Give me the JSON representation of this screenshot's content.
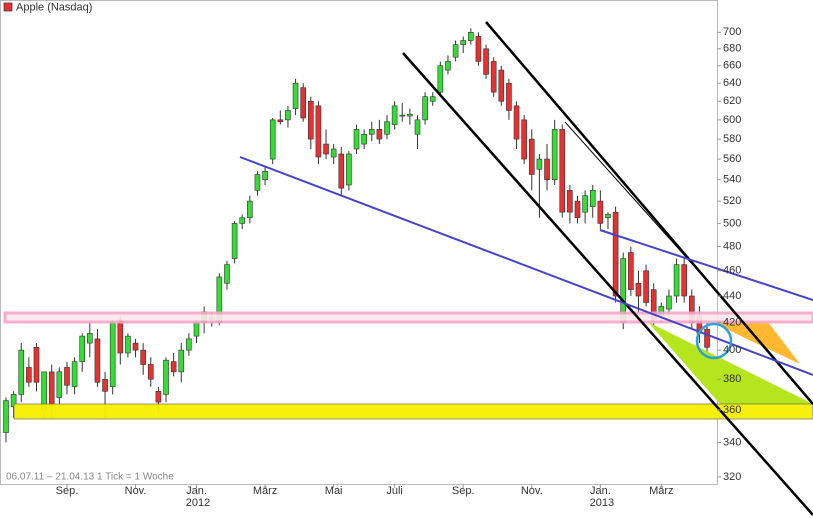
{
  "chart_data": {
    "type": "candlestick",
    "title": "Apple (Nasdaq)",
    "footer": "06.07.11 – 21.04.13   1 Tick = 1 Woche",
    "categories": [
      null,
      null,
      null,
      null,
      null,
      null,
      null,
      null,
      "Sep.",
      null,
      null,
      null,
      null,
      null,
      null,
      null,
      null,
      "Nov.",
      null,
      null,
      null,
      null,
      null,
      null,
      null,
      "Jan. 2012",
      null,
      null,
      null,
      null,
      null,
      null,
      null,
      null,
      "März",
      null,
      null,
      null,
      null,
      null,
      null,
      null,
      null,
      "Mai",
      null,
      null,
      null,
      null,
      null,
      null,
      null,
      "Juli",
      null,
      null,
      null,
      null,
      null,
      null,
      null,
      null,
      "Sep.",
      null,
      null,
      null,
      null,
      null,
      null,
      null,
      null,
      "Nov.",
      null,
      null,
      null,
      null,
      null,
      null,
      null,
      null,
      "Jan. 2013",
      null,
      null,
      null,
      null,
      null,
      null,
      null,
      "März",
      null,
      null,
      null,
      null,
      null,
      null
    ],
    "open": [
      346,
      362,
      370,
      388,
      402,
      360,
      385,
      368,
      388,
      375,
      392,
      405,
      408,
      380,
      375,
      422,
      398,
      405,
      400,
      390,
      372,
      370,
      392,
      385,
      400,
      410,
      420,
      422,
      420,
      450,
      470,
      500,
      505,
      530,
      540,
      560,
      600,
      600,
      612,
      635,
      620,
      615,
      575,
      562,
      565,
      535,
      570,
      575,
      585,
      590,
      585,
      595,
      605,
      604,
      585,
      600,
      620,
      630,
      655,
      670,
      685,
      690,
      695,
      680,
      665,
      655,
      640,
      615,
      600,
      580,
      550,
      560,
      540,
      590,
      530,
      520,
      510,
      515,
      520,
      505,
      510,
      420,
      475,
      450,
      460,
      445,
      425,
      430,
      440,
      465,
      440,
      425,
      415
    ],
    "high": [
      368,
      372,
      405,
      395,
      405,
      385,
      390,
      388,
      392,
      395,
      412,
      420,
      415,
      385,
      422,
      425,
      412,
      408,
      405,
      395,
      375,
      395,
      398,
      405,
      412,
      422,
      432,
      428,
      458,
      468,
      502,
      508,
      525,
      548,
      552,
      602,
      610,
      615,
      645,
      640,
      625,
      620,
      590,
      575,
      572,
      568,
      595,
      590,
      598,
      600,
      605,
      620,
      618,
      612,
      605,
      630,
      630,
      665,
      672,
      690,
      695,
      705,
      700,
      685,
      670,
      660,
      645,
      620,
      605,
      590,
      565,
      575,
      600,
      595,
      535,
      525,
      530,
      535,
      530,
      510,
      515,
      475,
      480,
      460,
      465,
      450,
      435,
      445,
      470,
      470,
      445,
      432,
      420
    ],
    "low": [
      340,
      355,
      365,
      375,
      372,
      355,
      355,
      362,
      370,
      370,
      385,
      395,
      375,
      355,
      370,
      390,
      395,
      395,
      383,
      375,
      358,
      365,
      382,
      378,
      396,
      405,
      412,
      417,
      418,
      445,
      466,
      495,
      500,
      525,
      535,
      555,
      595,
      592,
      605,
      598,
      570,
      555,
      560,
      555,
      525,
      530,
      565,
      570,
      578,
      575,
      580,
      590,
      598,
      595,
      570,
      595,
      615,
      625,
      650,
      665,
      675,
      685,
      660,
      645,
      625,
      615,
      600,
      570,
      555,
      530,
      505,
      530,
      535,
      505,
      500,
      500,
      500,
      505,
      495,
      495,
      435,
      415,
      440,
      428,
      432,
      418,
      420,
      425,
      435,
      435,
      415,
      405,
      398
    ],
    "close": [
      366,
      370,
      400,
      378,
      378,
      385,
      362,
      385,
      376,
      392,
      410,
      412,
      378,
      372,
      420,
      398,
      410,
      400,
      390,
      380,
      365,
      393,
      385,
      400,
      408,
      420,
      428,
      424,
      455,
      465,
      500,
      505,
      520,
      545,
      548,
      600,
      598,
      610,
      640,
      602,
      580,
      562,
      565,
      570,
      532,
      565,
      590,
      585,
      590,
      580,
      598,
      615,
      605,
      606,
      600,
      625,
      625,
      660,
      665,
      685,
      690,
      700,
      665,
      650,
      630,
      620,
      610,
      580,
      560,
      545,
      560,
      540,
      590,
      510,
      510,
      505,
      525,
      530,
      500,
      508,
      440,
      470,
      445,
      440,
      435,
      422,
      432,
      440,
      465,
      440,
      420,
      412,
      402
    ],
    "ylim": [
      316,
      741
    ],
    "yticks": [
      320,
      340,
      360,
      380,
      400,
      420,
      440,
      460,
      480,
      500,
      520,
      540,
      560,
      580,
      600,
      620,
      640,
      660,
      680,
      700
    ],
    "log_scale": true,
    "up_color": "#33dd33",
    "down_color": "#e83030"
  }
}
